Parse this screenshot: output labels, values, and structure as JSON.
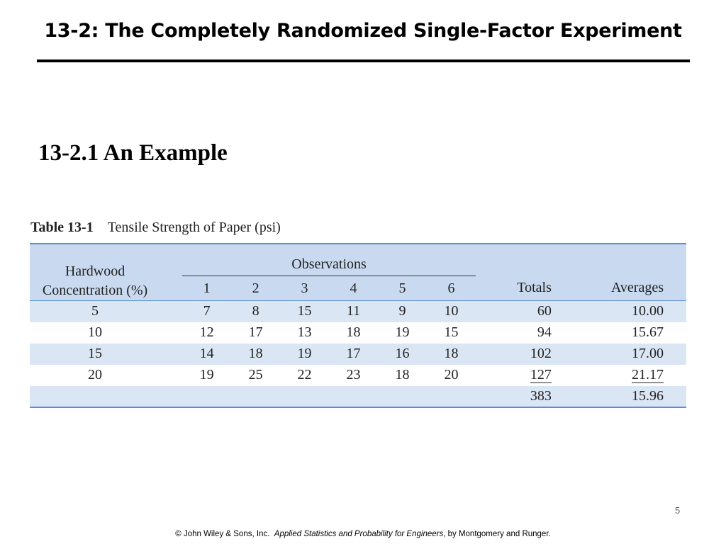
{
  "slide": {
    "title": "13-2: The Completely Randomized Single-Factor Experiment",
    "section_heading": "13-2.1 An Example",
    "page_number": "5"
  },
  "table": {
    "caption_number": "Table 13-1",
    "caption_text": "Tensile Strength of Paper (psi)",
    "headers": {
      "hardwood_line1": "Hardwood",
      "hardwood_line2": "Concentration (%)",
      "observations": "Observations",
      "obs_numbers": [
        "1",
        "2",
        "3",
        "4",
        "5",
        "6"
      ],
      "totals": "Totals",
      "averages": "Averages"
    },
    "rows": [
      {
        "concentration": "5",
        "obs": [
          "7",
          "8",
          "15",
          "11",
          "9",
          "10"
        ],
        "total": "60",
        "average": "10.00"
      },
      {
        "concentration": "10",
        "obs": [
          "12",
          "17",
          "13",
          "18",
          "19",
          "15"
        ],
        "total": "94",
        "average": "15.67"
      },
      {
        "concentration": "15",
        "obs": [
          "14",
          "18",
          "19",
          "17",
          "16",
          "18"
        ],
        "total": "102",
        "average": "17.00"
      },
      {
        "concentration": "20",
        "obs": [
          "19",
          "25",
          "22",
          "23",
          "18",
          "20"
        ],
        "total": "127",
        "average": "21.17"
      }
    ],
    "grand_total": "383",
    "grand_average": "15.96"
  },
  "footer": {
    "copyright": "© John Wiley & Sons, Inc.",
    "book": "Applied Statistics and Probability for Engineers",
    "authors": ", by Montgomery and Runger."
  }
}
